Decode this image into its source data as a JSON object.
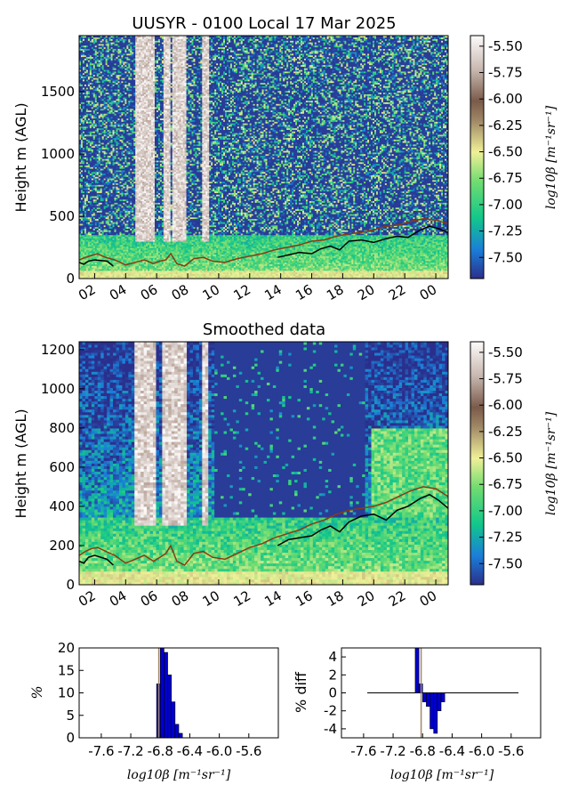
{
  "chart_data": [
    {
      "id": "raw",
      "type": "heatmap",
      "title": "UUSYR - 0100 Local 17 Mar 2025",
      "ylabel": "Height m (AGL)",
      "x_ticks": [
        "02",
        "04",
        "06",
        "08",
        "10",
        "12",
        "14",
        "16",
        "18",
        "20",
        "22",
        "00"
      ],
      "x_range_hours": [
        1,
        24.8
      ],
      "y_ticks": [
        0,
        500,
        1000,
        1500
      ],
      "y_range": [
        0,
        1950
      ],
      "colorbar": {
        "label": "log10β [m⁻¹sr⁻¹]",
        "ticks": [
          "-5.50",
          "-5.75",
          "-6.00",
          "-6.25",
          "-6.50",
          "-6.75",
          "-7.00",
          "-7.25",
          "-7.50"
        ],
        "range": [
          -7.7,
          -5.4
        ],
        "colormap": [
          "#2b2f8c",
          "#1a7fd9",
          "#12c78a",
          "#71dc70",
          "#f0f098",
          "#a08866",
          "#7a5a4a",
          "#c8b8b0",
          "#fdfbfb"
        ]
      },
      "lines": [
        {
          "color": "#000000",
          "x": [
            1.0,
            1.3,
            1.6,
            2.0,
            2.4,
            2.8,
            3.2,
            13.8,
            14.5,
            15.2,
            16.0,
            16.6,
            17.2,
            17.8,
            18.4,
            19.2,
            20.0,
            20.8,
            21.5,
            22.2,
            23.0,
            23.6,
            24.2,
            24.8
          ],
          "y": [
            130,
            115,
            140,
            150,
            145,
            140,
            100,
            170,
            190,
            210,
            200,
            240,
            260,
            230,
            300,
            310,
            290,
            320,
            340,
            330,
            390,
            420,
            400,
            370
          ]
        },
        {
          "color": "#8b3a10",
          "x": [
            1.0,
            1.4,
            1.8,
            2.2,
            2.6,
            3.0,
            3.3,
            4.0,
            4.6,
            5.2,
            5.8,
            6.2,
            6.6,
            6.9,
            7.3,
            7.8,
            8.4,
            9.0,
            9.6,
            10.4,
            11.2,
            12.0,
            12.8,
            13.6,
            14.4,
            15.2,
            16.0,
            16.8,
            17.6,
            18.4,
            19.2,
            20.0,
            20.8,
            21.6,
            22.4,
            23.2,
            24.0,
            24.8
          ],
          "y": [
            150,
            170,
            185,
            200,
            175,
            160,
            150,
            110,
            130,
            150,
            120,
            140,
            150,
            200,
            120,
            100,
            160,
            170,
            140,
            130,
            160,
            180,
            200,
            230,
            250,
            270,
            300,
            310,
            340,
            360,
            370,
            390,
            420,
            430,
            460,
            480,
            470,
            440
          ]
        }
      ]
    },
    {
      "id": "smoothed",
      "type": "heatmap",
      "title": "Smoothed data",
      "ylabel": "Height m (AGL)",
      "x_ticks": [
        "02",
        "04",
        "06",
        "08",
        "10",
        "12",
        "14",
        "16",
        "18",
        "20",
        "22",
        "00"
      ],
      "x_range_hours": [
        1,
        24.8
      ],
      "y_ticks": [
        0,
        200,
        400,
        600,
        800,
        1000,
        1200
      ],
      "y_range": [
        0,
        1240
      ],
      "colorbar": {
        "label": "log10β [m⁻¹sr⁻¹]",
        "ticks": [
          "-5.50",
          "-5.75",
          "-6.00",
          "-6.25",
          "-6.50",
          "-6.75",
          "-7.00",
          "-7.25",
          "-7.50"
        ],
        "range": [
          -7.7,
          -5.4
        ],
        "colormap": [
          "#2b2f8c",
          "#1a7fd9",
          "#12c78a",
          "#71dc70",
          "#f0f098",
          "#a08866",
          "#7a5a4a",
          "#c8b8b0",
          "#fdfbfb"
        ]
      },
      "lines": [
        {
          "color": "#000000",
          "x": [
            1.0,
            1.3,
            1.6,
            2.0,
            2.4,
            2.8,
            3.2,
            13.8,
            14.5,
            15.2,
            16.0,
            16.6,
            17.2,
            17.8,
            18.4,
            19.2,
            20.0,
            20.8,
            21.5,
            22.2,
            23.0,
            23.6,
            24.2,
            24.8
          ],
          "y": [
            120,
            110,
            140,
            150,
            140,
            130,
            100,
            200,
            230,
            240,
            250,
            280,
            300,
            270,
            320,
            350,
            360,
            330,
            380,
            400,
            440,
            460,
            430,
            390
          ]
        },
        {
          "color": "#8b3a10",
          "x": [
            1.0,
            1.4,
            1.8,
            2.2,
            2.6,
            3.0,
            3.3,
            4.0,
            4.6,
            5.2,
            5.8,
            6.2,
            6.6,
            6.9,
            7.3,
            7.8,
            8.4,
            9.0,
            9.6,
            10.4,
            11.2,
            12.0,
            12.8,
            13.6,
            14.4,
            15.2,
            16.0,
            16.8,
            17.6,
            18.4,
            19.2,
            20.0,
            20.8,
            21.6,
            22.4,
            23.2,
            24.0,
            24.8
          ],
          "y": [
            150,
            170,
            185,
            190,
            175,
            160,
            150,
            110,
            130,
            150,
            120,
            140,
            160,
            200,
            120,
            100,
            160,
            170,
            140,
            130,
            160,
            190,
            210,
            240,
            260,
            280,
            310,
            330,
            360,
            380,
            390,
            400,
            420,
            450,
            480,
            500,
            490,
            450
          ]
        }
      ]
    },
    {
      "id": "hist",
      "type": "bar",
      "ylabel": "%",
      "xlabel": "log10β [m⁻¹sr⁻¹]",
      "x_tick_labels": [
        "-7.6",
        "-7.2",
        "-6.8",
        "-6.4",
        "-6.0",
        "-5.6"
      ],
      "x_tick_values": [
        -7.6,
        -7.2,
        -6.8,
        -6.4,
        -6.0,
        -5.6
      ],
      "xlim": [
        -7.9,
        -5.2
      ],
      "ylim": [
        0,
        20
      ],
      "y_ticks": [
        0,
        5,
        10,
        15,
        20
      ],
      "bin_width": 0.05,
      "bins": [
        -6.85,
        -6.8,
        -6.75,
        -6.7,
        -6.65,
        -6.6,
        -6.55
      ],
      "values": [
        12,
        20,
        19,
        14,
        8,
        3,
        1
      ],
      "marker_x": -6.82
    },
    {
      "id": "diff",
      "type": "bar",
      "ylabel": "% diff",
      "xlabel": "log10β [m⁻¹sr⁻¹]",
      "x_tick_labels": [
        "-7.6",
        "-7.2",
        "-6.8",
        "-6.4",
        "-6.0",
        "-5.6"
      ],
      "x_tick_values": [
        -7.6,
        -7.2,
        -6.8,
        -6.4,
        -6.0,
        -5.6
      ],
      "xlim": [
        -7.9,
        -5.2
      ],
      "ylim": [
        -5,
        5
      ],
      "y_ticks": [
        -4,
        -2,
        0,
        2,
        4
      ],
      "bin_width": 0.05,
      "bins": [
        -6.9,
        -6.85,
        -6.8,
        -6.75,
        -6.7,
        -6.65,
        -6.6,
        -6.55
      ],
      "values": [
        5,
        1,
        -1,
        -1.5,
        -4,
        -4.5,
        -2,
        -1
      ],
      "baseline_x": [
        -7.55,
        -5.5
      ],
      "marker_x": -6.82
    }
  ]
}
